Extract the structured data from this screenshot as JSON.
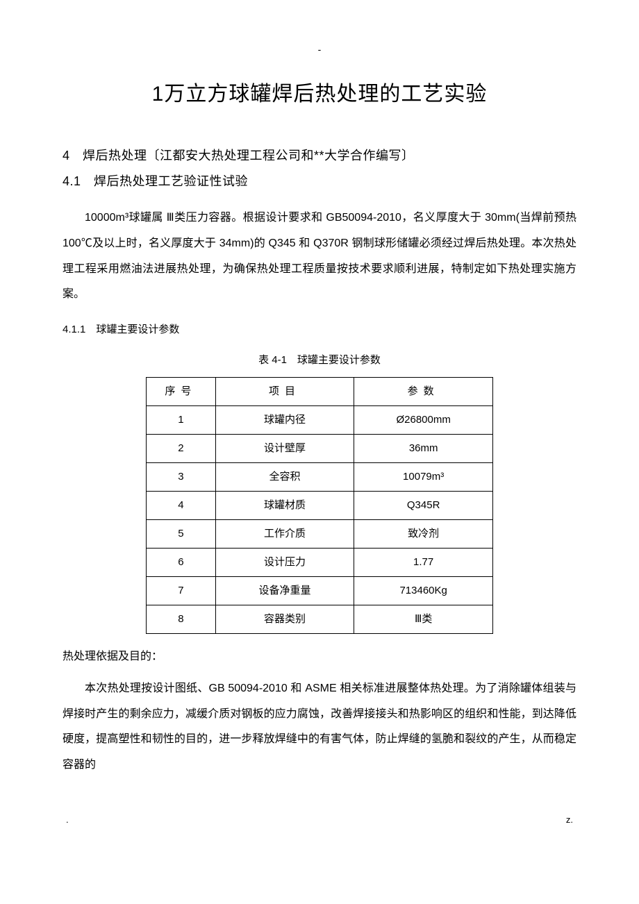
{
  "header_marker": "-",
  "title": "1万立方球罐焊后热处理的工艺实验",
  "section4": {
    "heading": "4　焊后热处理〔江都安大热处理工程公司和**大学合作编写〕",
    "sub1": {
      "heading": "4.1　焊后热处理工艺验证性试验",
      "paragraph": "10000m³球罐属 Ⅲ类压力容器。根据设计要求和 GB50094-2010，名义厚度大于 30mm(当焊前预热 100℃及以上时，名义厚度大于 34mm)的 Q345 和 Q370R 钢制球形储罐必须经过焊后热处理。本次热处理工程采用燃油法进展热处理，为确保热处理工程质量按技术要求顺利进展，特制定如下热处理实施方案。",
      "sub1": {
        "heading": "4.1.1　球罐主要设计参数",
        "table_caption": "表 4-1　球罐主要设计参数",
        "table": {
          "headers": [
            "序号",
            "项目",
            "参数"
          ],
          "rows": [
            {
              "no": "1",
              "item": "球罐内径",
              "value": "Ø26800mm"
            },
            {
              "no": "2",
              "item": "设计壁厚",
              "value": "36mm"
            },
            {
              "no": "3",
              "item": "全容积",
              "value": "10079m³"
            },
            {
              "no": "4",
              "item": "球罐材质",
              "value": "Q345R"
            },
            {
              "no": "5",
              "item": "工作介质",
              "value": "致冷剂"
            },
            {
              "no": "6",
              "item": "设计压力",
              "value": "1.77"
            },
            {
              "no": "7",
              "item": "设备净重量",
              "value": "713460Kg"
            },
            {
              "no": "8",
              "item": "容器类别",
              "value": "Ⅲ类"
            }
          ]
        }
      },
      "basis_label": "热处理依据及目的：",
      "basis_paragraph": "本次热处理按设计图纸、GB 50094-2010 和 ASME 相关标准进展整体热处理。为了消除罐体组装与焊接时产生的剩余应力，减缓介质对钢板的应力腐蚀，改善焊接接头和热影响区的组织和性能，到达降低硬度，提高塑性和韧性的目的，进一步释放焊缝中的有害气体，防止焊缝的氢脆和裂纹的产生，从而稳定容器的"
    }
  },
  "footer_left": ".",
  "footer_right": "z."
}
